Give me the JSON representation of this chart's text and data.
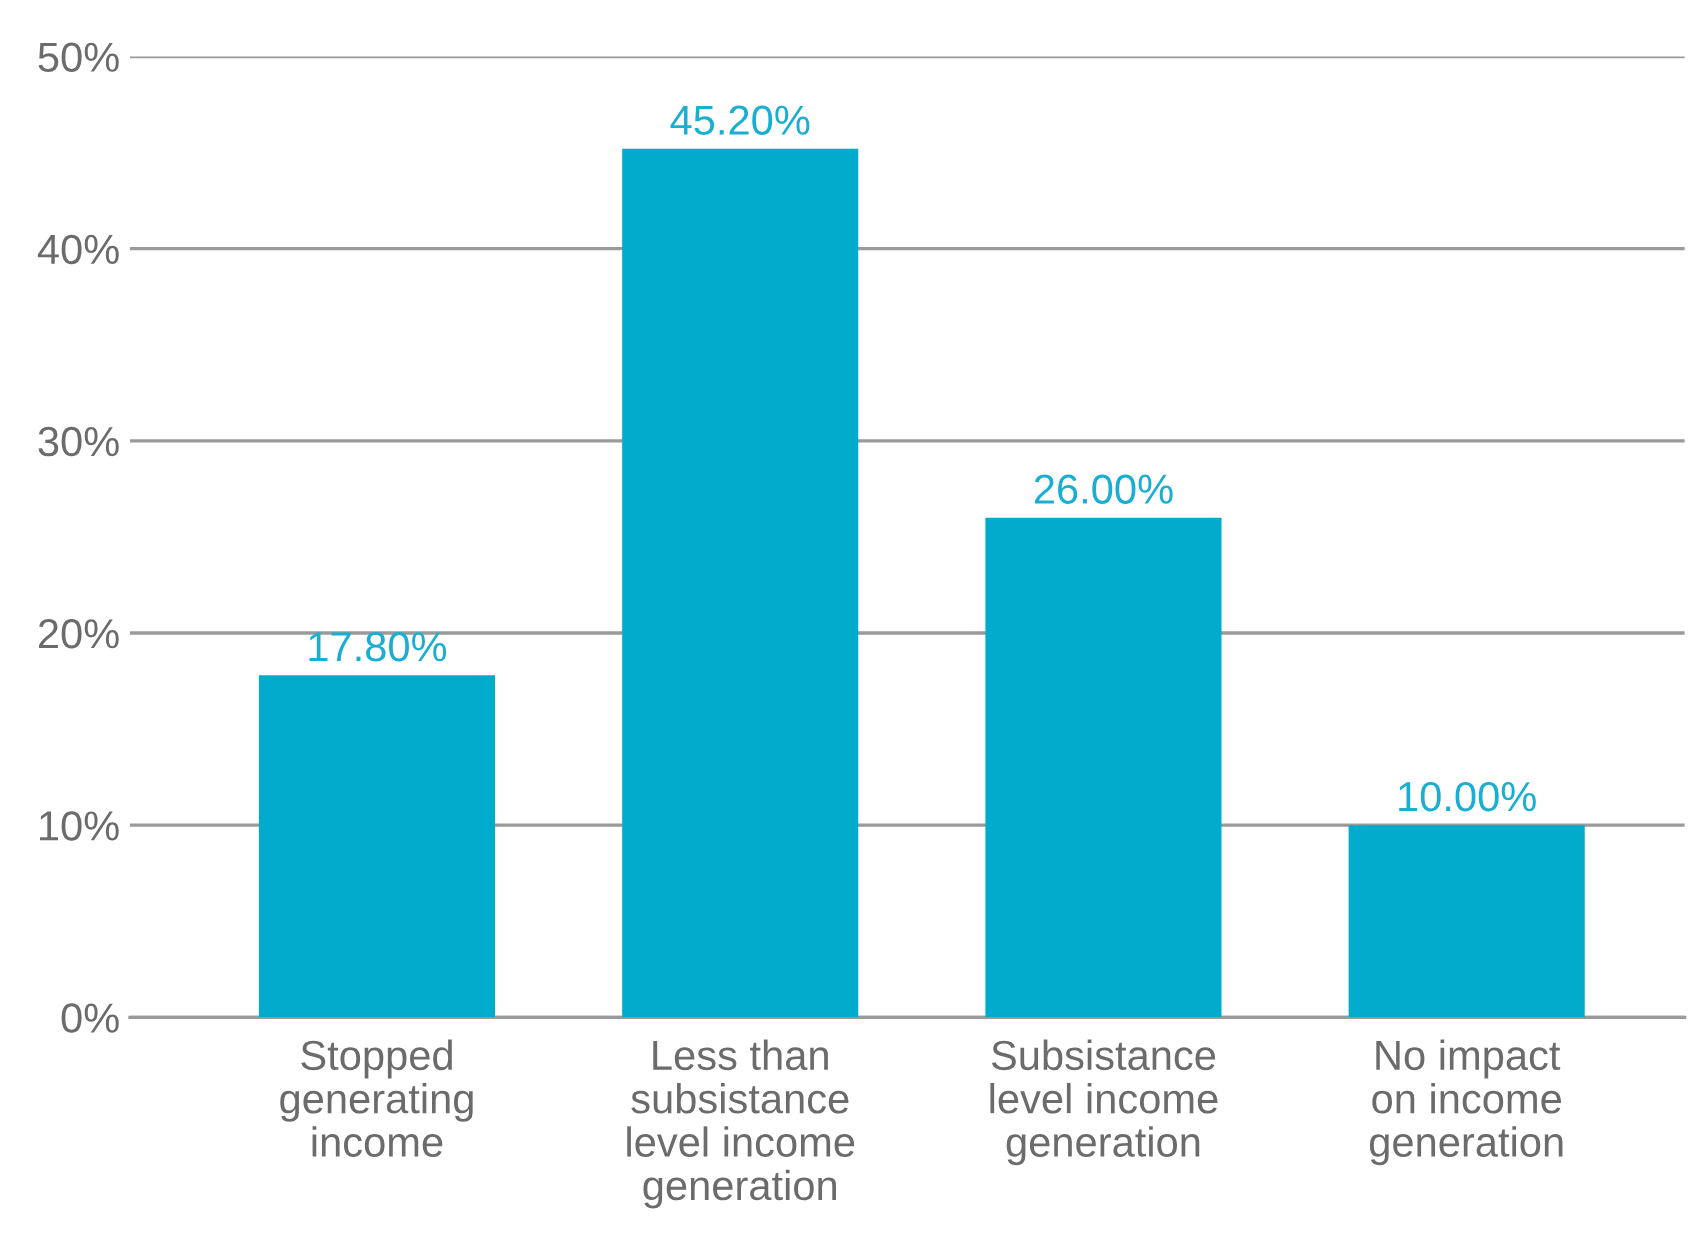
{
  "chart_data": {
    "type": "bar",
    "categories": [
      "Stopped\ngenerating\nincome",
      "Less than\nsubsistance\nlevel income\ngeneration",
      "Subsistance\nlevel income\ngeneration",
      "No impact\non income\ngeneration"
    ],
    "values": [
      17.8,
      45.2,
      26.0,
      10.0
    ],
    "value_labels": [
      "17.80%",
      "45.20%",
      "26.00%",
      "10.00%"
    ],
    "color": "#00abcc",
    "ylim": [
      0,
      50
    ],
    "yticks": [
      {
        "value": 0,
        "label": "0%"
      },
      {
        "value": 10,
        "label": "10%"
      },
      {
        "value": 20,
        "label": "20%"
      },
      {
        "value": 30,
        "label": "30%"
      },
      {
        "value": 40,
        "label": "40%"
      },
      {
        "value": 50,
        "label": "50%"
      }
    ],
    "grid": "y",
    "legend": false
  }
}
